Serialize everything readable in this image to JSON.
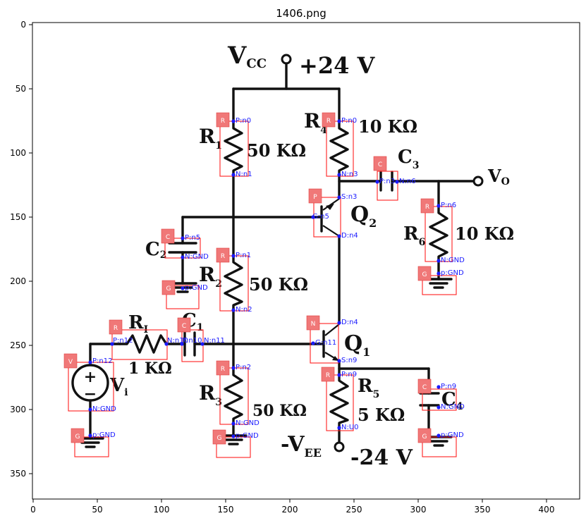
{
  "title": "1406.png",
  "axes": {
    "x_ticks": [
      "0",
      "50",
      "100",
      "150",
      "200",
      "250",
      "300",
      "350",
      "400"
    ],
    "y_ticks": [
      "0",
      "50",
      "100",
      "150",
      "200",
      "250",
      "300",
      "350"
    ]
  },
  "circuit_labels": {
    "vcc_main": "V",
    "vcc_sub": "CC",
    "vcc_value": "+24 V",
    "vee_main": "-V",
    "vee_sub": "EE",
    "vee_value": "-24 V",
    "vo_main": "V",
    "vo_sub": "O",
    "r1_main": "R",
    "r1_sub": "1",
    "r1_value": "50 KΩ",
    "r2_main": "R",
    "r2_sub": "2",
    "r2_value": "50 KΩ",
    "r3_main": "R",
    "r3_sub": "3",
    "r3_value": "50 KΩ",
    "r4_main": "R",
    "r4_sub": "4",
    "r4_value": "10 KΩ",
    "r5_main": "R",
    "r5_sub": "5",
    "r5_value": "5 KΩ",
    "r6_main": "R",
    "r6_sub": "6",
    "r6_value": "10 KΩ",
    "ri_main": "R",
    "ri_sub": "I",
    "ri_value": "1 KΩ",
    "vi_main": "V",
    "vi_sub": "i",
    "c1_main": "C",
    "c1_sub": "1",
    "c2_main": "C",
    "c2_sub": "2",
    "c3_main": "C",
    "c3_sub": "3",
    "c4_main": "C",
    "c4_sub": "4",
    "q1_main": "Q",
    "q1_sub": "1",
    "q2_main": "Q",
    "q2_sub": "2",
    "src_plus": "+",
    "src_minus": "−"
  },
  "component_tags": {
    "r_top_left": "R",
    "r_top_right": "R",
    "c3": "C",
    "p_q2": "P",
    "r6": "R",
    "c2": "C",
    "r_mid": "R",
    "g_c2": "G",
    "g_r6": "G",
    "r_in": "R",
    "c1": "C",
    "n_q1": "N",
    "v_src": "V",
    "r_bot": "R",
    "r5": "R",
    "c4": "C",
    "g_src": "G",
    "g_r3": "G",
    "g_c4": "G"
  },
  "pin_labels": {
    "r1_p": "P:n0",
    "r1_n": "N:n1",
    "r4_p": "P:n0",
    "r4_n": "N:n3",
    "c3_p": "P:n3",
    "c3_n": "N:n6",
    "q2_s": "S:n3",
    "q2_g": "G:n5",
    "q2_d": "D:n4",
    "r6_p": "P:n6",
    "r6_n": "N:GND",
    "g_r6": "p:GND",
    "c2_p": "P:n5",
    "c2_n": "N:GND",
    "g_c2": "p:GND",
    "r2_p": "P:n1",
    "r2_n": "N:n2",
    "q1_d": "D:n4",
    "q1_g": "G:n11",
    "q1_s": "S:n9",
    "ri_p": "P:n12",
    "ri_n": "N:n10",
    "c1_p": "P:n10",
    "c1_n": "N:n11",
    "vs_p": "P:n12",
    "vs_n": "N:GND",
    "g_vs": "p:GND",
    "r3_p": "P:n2",
    "r3_n": "N:GND",
    "g_r3": "p:GND",
    "r5_p": "P:n9",
    "r5_n": "N:U0",
    "c4_p": "P:n9",
    "c4_n": "N:GND",
    "g_c4": "p:GND"
  }
}
